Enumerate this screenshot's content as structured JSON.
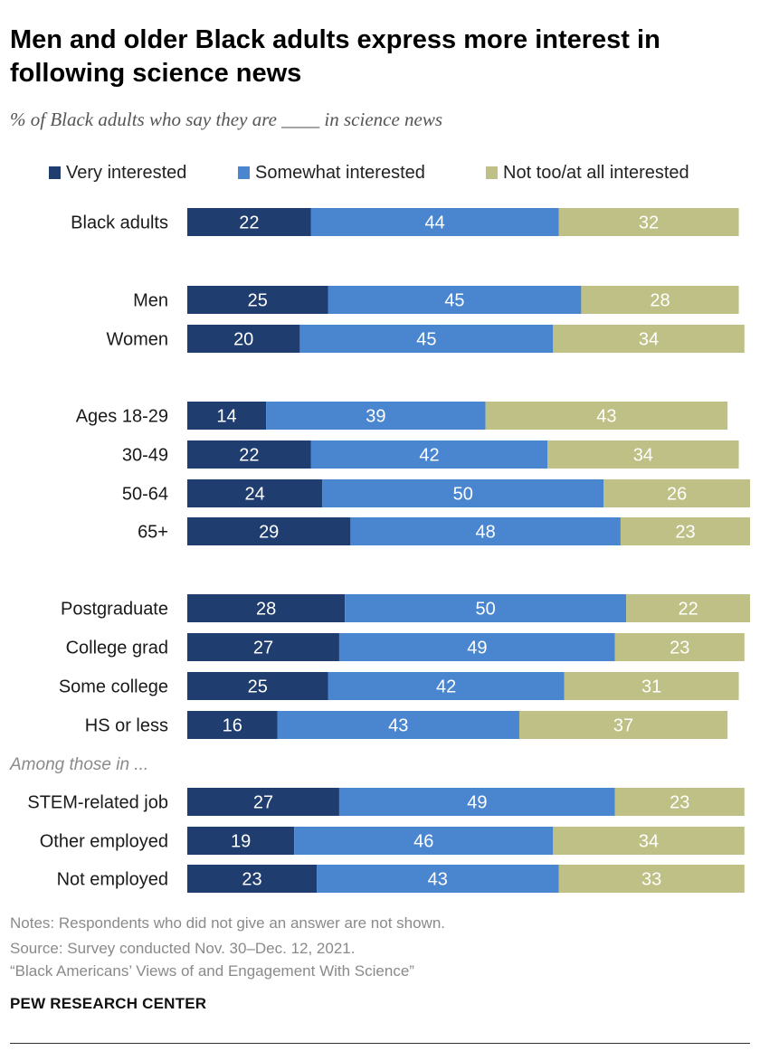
{
  "title": "Men and older Black adults express more interest in following science news",
  "subtitle": "% of Black adults who say they are ____ in science news",
  "legend": [
    {
      "label": "Very interested",
      "color": "#1f3d6e"
    },
    {
      "label": "Somewhat interested",
      "color": "#4a86d0"
    },
    {
      "label": "Not too/at all interested",
      "color": "#bec085"
    }
  ],
  "chart_data": {
    "type": "bar",
    "orientation": "horizontal",
    "stacked": true,
    "xlim": [
      0,
      100
    ],
    "series_names": [
      "Very interested",
      "Somewhat interested",
      "Not too/at all interested"
    ],
    "annotations": [
      "Among those in ..."
    ],
    "categories": [
      "Black adults",
      "Men",
      "Women",
      "Ages 18-29",
      "30-49",
      "50-64",
      "65+",
      "Postgraduate",
      "College grad",
      "Some college",
      "HS or less",
      "STEM-related job",
      "Other employed",
      "Not employed"
    ],
    "series": [
      {
        "name": "Very interested",
        "values": [
          22,
          25,
          20,
          14,
          22,
          24,
          29,
          28,
          27,
          25,
          16,
          27,
          19,
          23
        ]
      },
      {
        "name": "Somewhat interested",
        "values": [
          44,
          45,
          45,
          39,
          42,
          50,
          48,
          50,
          49,
          42,
          43,
          49,
          46,
          43
        ]
      },
      {
        "name": "Not too/at all interested",
        "values": [
          32,
          28,
          34,
          43,
          34,
          26,
          23,
          22,
          23,
          31,
          37,
          23,
          34,
          33
        ]
      }
    ]
  },
  "notes": "Notes: Respondents who did not give an answer are not shown.",
  "source": "Source: Survey conducted Nov. 30–Dec. 12, 2021.",
  "report": "“Black Americans’ Views of and Engagement With Science”",
  "brand": "PEW RESEARCH CENTER"
}
